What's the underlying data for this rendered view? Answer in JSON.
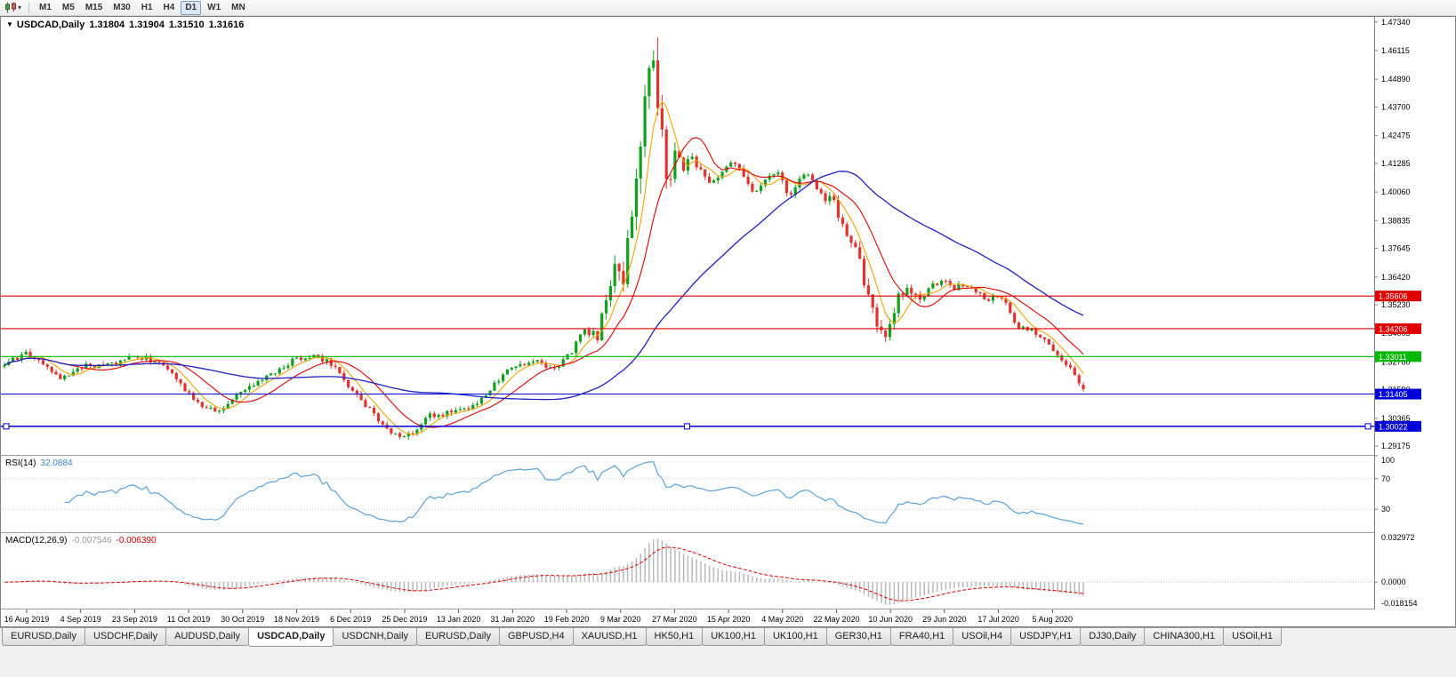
{
  "toolbar": {
    "chart_type_icon": "candlestick-chart-icon",
    "dropdown_icon": "chevron-down-icon",
    "timeframes": [
      {
        "label": "M1",
        "active": false
      },
      {
        "label": "M5",
        "active": false
      },
      {
        "label": "M15",
        "active": false
      },
      {
        "label": "M30",
        "active": false
      },
      {
        "label": "H1",
        "active": false
      },
      {
        "label": "H4",
        "active": false
      },
      {
        "label": "D1",
        "active": true
      },
      {
        "label": "W1",
        "active": false
      },
      {
        "label": "MN",
        "active": false
      }
    ]
  },
  "chart_title": {
    "marker": "▼",
    "symbol": "USDCAD,Daily",
    "open": "1.31804",
    "high": "1.31904",
    "low": "1.31510",
    "close": "1.31616"
  },
  "chart_data": {
    "type": "candlestick",
    "symbol": "USDCAD",
    "timeframe": "Daily",
    "current_ohlc": {
      "open": 1.31804,
      "high": 1.31904,
      "low": 1.3151,
      "close": 1.31616
    },
    "price_top": 1.476,
    "price_bottom": 1.288,
    "num_candles": 252,
    "period_high": 1.4668,
    "period_low": 1.2949,
    "price_axis_labels": [
      "1.47340",
      "1.46115",
      "1.44890",
      "1.43700",
      "1.42475",
      "1.41285",
      "1.40060",
      "1.38835",
      "1.37645",
      "1.36420",
      "1.35230",
      "1.34005",
      "1.32780",
      "1.31590",
      "1.30365",
      "1.29175"
    ],
    "date_labels": [
      "16 Aug 2019",
      "4 Sep 2019",
      "23 Sep 2019",
      "11 Oct 2019",
      "30 Oct 2019",
      "18 Nov 2019",
      "6 Dec 2019",
      "25 Dec 2019",
      "13 Jan 2020",
      "31 Jan 2020",
      "19 Feb 2020",
      "9 Mar 2020",
      "27 Mar 2020",
      "15 Apr 2020",
      "4 May 2020",
      "22 May 2020",
      "10 Jun 2020",
      "29 Jun 2020",
      "17 Jul 2020",
      "5 Aug 2020"
    ],
    "hlines": [
      {
        "price": 1.35606,
        "label": "1.35606",
        "color": "#e00000",
        "handles": false
      },
      {
        "price": 1.34206,
        "label": "1.34206",
        "color": "#e00000",
        "handles": false
      },
      {
        "price": 1.33011,
        "label": "1.33011",
        "color": "#00b800",
        "handles": false
      },
      {
        "price": 1.31405,
        "label": "1.31405",
        "color": "#0000d8",
        "handles": false
      },
      {
        "price": 1.30022,
        "label": "1.30022",
        "color": "#0000d8",
        "handles": true
      }
    ],
    "colors": {
      "up": "#11a11c",
      "down": "#e2342e",
      "ma_fast": "#f0a500",
      "ma_mid": "#e00000",
      "ma_slow": "#2020c8"
    },
    "keypoints": [
      [
        0.0,
        1.3258
      ],
      [
        0.01,
        1.3295
      ],
      [
        0.022,
        1.3312
      ],
      [
        0.034,
        1.327
      ],
      [
        0.045,
        1.3228
      ],
      [
        0.055,
        1.3205
      ],
      [
        0.068,
        1.3242
      ],
      [
        0.08,
        1.3268
      ],
      [
        0.092,
        1.3255
      ],
      [
        0.102,
        1.3268
      ],
      [
        0.115,
        1.3292
      ],
      [
        0.128,
        1.33
      ],
      [
        0.14,
        1.3272
      ],
      [
        0.154,
        1.3238
      ],
      [
        0.166,
        1.3172
      ],
      [
        0.18,
        1.3098
      ],
      [
        0.193,
        1.3065
      ],
      [
        0.205,
        1.3088
      ],
      [
        0.22,
        1.3152
      ],
      [
        0.235,
        1.3185
      ],
      [
        0.248,
        1.3228
      ],
      [
        0.258,
        1.3252
      ],
      [
        0.27,
        1.329
      ],
      [
        0.284,
        1.3302
      ],
      [
        0.298,
        1.3282
      ],
      [
        0.308,
        1.3255
      ],
      [
        0.32,
        1.3168
      ],
      [
        0.335,
        1.3092
      ],
      [
        0.349,
        1.3022
      ],
      [
        0.358,
        1.2968
      ],
      [
        0.37,
        1.2958
      ],
      [
        0.382,
        1.2992
      ],
      [
        0.395,
        1.3048
      ],
      [
        0.41,
        1.3056
      ],
      [
        0.424,
        1.3068
      ],
      [
        0.438,
        1.3108
      ],
      [
        0.452,
        1.3172
      ],
      [
        0.462,
        1.3222
      ],
      [
        0.475,
        1.3262
      ],
      [
        0.488,
        1.3288
      ],
      [
        0.5,
        1.3262
      ],
      [
        0.512,
        1.3248
      ],
      [
        0.524,
        1.3308
      ],
      [
        0.538,
        1.3415
      ],
      [
        0.55,
        1.3388
      ],
      [
        0.56,
        1.3598
      ],
      [
        0.566,
        1.3682
      ],
      [
        0.573,
        1.3625
      ],
      [
        0.58,
        1.3878
      ],
      [
        0.588,
        1.4175
      ],
      [
        0.594,
        1.4468
      ],
      [
        0.599,
        1.464
      ],
      [
        0.604,
        1.4475
      ],
      [
        0.61,
        1.4238
      ],
      [
        0.615,
        1.4062
      ],
      [
        0.622,
        1.4185
      ],
      [
        0.63,
        1.4092
      ],
      [
        0.638,
        1.4162
      ],
      [
        0.646,
        1.4088
      ],
      [
        0.655,
        1.4028
      ],
      [
        0.666,
        1.4092
      ],
      [
        0.676,
        1.4135
      ],
      [
        0.686,
        1.4072
      ],
      [
        0.696,
        1.3992
      ],
      [
        0.706,
        1.4062
      ],
      [
        0.717,
        1.4092
      ],
      [
        0.728,
        1.3985
      ],
      [
        0.739,
        1.4098
      ],
      [
        0.75,
        1.4045
      ],
      [
        0.76,
        1.3982
      ],
      [
        0.768,
        1.3968
      ],
      [
        0.779,
        1.3852
      ],
      [
        0.79,
        1.3772
      ],
      [
        0.8,
        1.3562
      ],
      [
        0.81,
        1.3432
      ],
      [
        0.819,
        1.3392
      ],
      [
        0.828,
        1.3558
      ],
      [
        0.838,
        1.3582
      ],
      [
        0.848,
        1.3532
      ],
      [
        0.858,
        1.3602
      ],
      [
        0.87,
        1.3622
      ],
      [
        0.88,
        1.3592
      ],
      [
        0.89,
        1.3612
      ],
      [
        0.9,
        1.3578
      ],
      [
        0.91,
        1.3542
      ],
      [
        0.922,
        1.3572
      ],
      [
        0.932,
        1.3498
      ],
      [
        0.941,
        1.3412
      ],
      [
        0.95,
        1.3425
      ],
      [
        0.96,
        1.3382
      ],
      [
        0.973,
        1.3332
      ],
      [
        0.984,
        1.3275
      ],
      [
        0.993,
        1.3205
      ],
      [
        1.0,
        1.3162
      ]
    ],
    "indicators": {
      "rsi": {
        "name": "RSI(14)",
        "value": "32.0884",
        "levels": [
          "100",
          "70",
          "30"
        ],
        "line_color": "#5aa2d8"
      },
      "macd": {
        "name": "MACD(12,26,9)",
        "value_macd": "-0.007546",
        "value_signal": "-0.006390",
        "axis_top": "0.032972",
        "axis_zero": "0.0000",
        "axis_bottom": "-0.018154",
        "hist_color": "#b9b9b9",
        "signal_color": "#e00000"
      }
    }
  },
  "tabs": [
    {
      "label": "EURUSD,Daily",
      "active": false
    },
    {
      "label": "USDCHF,Daily",
      "active": false
    },
    {
      "label": "AUDUSD,Daily",
      "active": false
    },
    {
      "label": "USDCAD,Daily",
      "active": true
    },
    {
      "label": "USDCNH,Daily",
      "active": false
    },
    {
      "label": "EURUSD,Daily",
      "active": false
    },
    {
      "label": "GBPUSD,H4",
      "active": false
    },
    {
      "label": "XAUUSD,H1",
      "active": false
    },
    {
      "label": "HK50,H1",
      "active": false
    },
    {
      "label": "UK100,H1",
      "active": false
    },
    {
      "label": "UK100,H1",
      "active": false
    },
    {
      "label": "GER30,H1",
      "active": false
    },
    {
      "label": "FRA40,H1",
      "active": false
    },
    {
      "label": "USOil,H4",
      "active": false
    },
    {
      "label": "USDJPY,H1",
      "active": false
    },
    {
      "label": "DJ30,Daily",
      "active": false
    },
    {
      "label": "CHINA300,H1",
      "active": false
    },
    {
      "label": "USOil,H1",
      "active": false
    }
  ]
}
